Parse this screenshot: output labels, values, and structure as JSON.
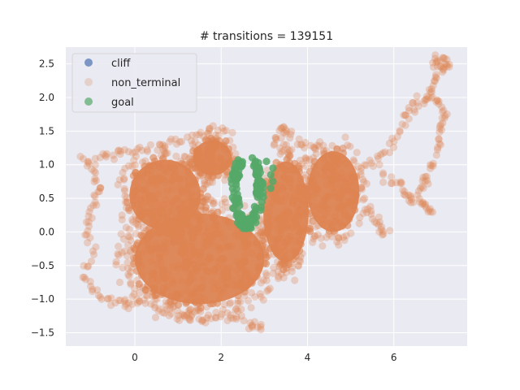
{
  "chart_data": {
    "type": "scatter",
    "title": "# transitions = 139151",
    "xlabel": "",
    "ylabel": "",
    "xlim": [
      -1.6,
      7.7
    ],
    "ylim": [
      -1.7,
      2.75
    ],
    "x_ticks": [
      0,
      2,
      4,
      6
    ],
    "y_ticks": [
      -1.5,
      -1.0,
      -0.5,
      0.0,
      0.5,
      1.0,
      1.5,
      2.0,
      2.5
    ],
    "x_tick_labels": [
      "0",
      "2",
      "4",
      "6"
    ],
    "y_tick_labels": [
      "−1.5",
      "−1.0",
      "−0.5",
      "0.0",
      "0.5",
      "1.0",
      "1.5",
      "2.0",
      "2.5"
    ],
    "grid": true,
    "legend_position": "top-left",
    "series": [
      {
        "name": "cliff",
        "color": "#4c72b0",
        "points": []
      },
      {
        "name": "non_terminal",
        "color": "#dd8452",
        "dense_regions": [
          {
            "cx": 1.5,
            "cy": -0.4,
            "rx": 2.0,
            "ry": 0.9,
            "count": 500
          },
          {
            "cx": 0.7,
            "cy": 0.55,
            "rx": 1.1,
            "ry": 0.7,
            "count": 240
          },
          {
            "cx": 3.5,
            "cy": 0.3,
            "rx": 0.7,
            "ry": 1.0,
            "count": 220
          },
          {
            "cx": 4.6,
            "cy": 0.6,
            "rx": 0.8,
            "ry": 0.8,
            "count": 170
          },
          {
            "cx": 1.8,
            "cy": 1.1,
            "rx": 0.6,
            "ry": 0.35,
            "count": 110
          }
        ],
        "sparse_paths": [
          [
            [
              -1.2,
              1.1
            ],
            [
              -1.0,
              0.85
            ],
            [
              -0.8,
              0.6
            ],
            [
              -0.95,
              0.35
            ],
            [
              -1.1,
              0.05
            ],
            [
              -1.0,
              -0.35
            ],
            [
              -1.15,
              -0.75
            ],
            [
              -0.8,
              -0.95
            ],
            [
              -0.4,
              -1.05
            ],
            [
              -0.1,
              -1.1
            ],
            [
              0.25,
              -1.0
            ]
          ],
          [
            [
              -1.0,
              1.05
            ],
            [
              -0.6,
              1.15
            ],
            [
              -0.2,
              1.2
            ],
            [
              0.3,
              1.25
            ],
            [
              0.8,
              1.3
            ],
            [
              1.3,
              1.4
            ],
            [
              1.8,
              1.55
            ],
            [
              2.2,
              1.5
            ]
          ],
          [
            [
              4.9,
              0.7
            ],
            [
              5.2,
              0.45
            ],
            [
              5.5,
              0.25
            ],
            [
              5.7,
              0.1
            ],
            [
              5.9,
              -0.05
            ]
          ],
          [
            [
              5.2,
              0.95
            ],
            [
              5.6,
              1.05
            ],
            [
              5.9,
              1.25
            ],
            [
              6.2,
              1.6
            ],
            [
              6.4,
              1.85
            ],
            [
              6.6,
              1.95
            ],
            [
              6.9,
              2.0
            ],
            [
              7.15,
              1.85
            ],
            [
              7.1,
              1.6
            ],
            [
              7.05,
              1.3
            ],
            [
              6.9,
              1.0
            ],
            [
              6.7,
              0.75
            ],
            [
              6.55,
              0.55
            ],
            [
              6.7,
              0.35
            ],
            [
              6.95,
              0.3
            ]
          ],
          [
            [
              6.8,
              2.0
            ],
            [
              6.95,
              2.25
            ],
            [
              7.1,
              2.45
            ],
            [
              7.25,
              2.5
            ],
            [
              7.05,
              2.6
            ],
            [
              6.95,
              2.5
            ]
          ],
          [
            [
              5.8,
              0.85
            ],
            [
              6.1,
              0.7
            ],
            [
              6.3,
              0.55
            ],
            [
              6.45,
              0.45
            ]
          ],
          [
            [
              3.0,
              -1.4
            ],
            [
              2.7,
              -1.35
            ],
            [
              2.3,
              -1.3
            ],
            [
              1.9,
              -1.25
            ],
            [
              1.4,
              -1.3
            ],
            [
              1.0,
              -1.25
            ],
            [
              0.5,
              -1.15
            ]
          ],
          [
            [
              3.2,
              1.3
            ],
            [
              3.4,
              1.55
            ],
            [
              3.5,
              1.5
            ],
            [
              3.9,
              1.3
            ],
            [
              4.3,
              1.2
            ],
            [
              4.7,
              1.0
            ]
          ]
        ]
      },
      {
        "name": "goal",
        "color": "#55a868",
        "ring": {
          "cx": 2.6,
          "cy": 0.62,
          "outer_rx": 0.62,
          "outer_ry": 0.62,
          "inner_rx": 0.33,
          "inner_ry": 0.45,
          "open_top": true,
          "count": 150
        },
        "extra_points": [
          [
            3.05,
            1.05
          ],
          [
            3.2,
            0.95
          ],
          [
            3.15,
            0.85
          ],
          [
            3.2,
            0.75
          ],
          [
            3.15,
            0.65
          ]
        ]
      }
    ]
  }
}
